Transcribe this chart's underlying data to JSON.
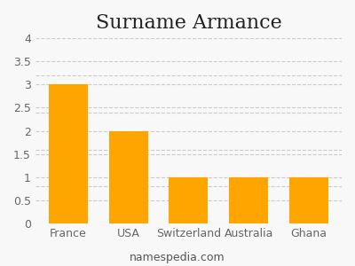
{
  "title": "Surname Armance",
  "categories": [
    "France",
    "USA",
    "Switzerland",
    "Australia",
    "Ghana"
  ],
  "values": [
    3,
    2,
    1,
    1,
    1
  ],
  "bar_color": "#FFA500",
  "ylim": [
    0,
    4
  ],
  "yticks_labeled": [
    0,
    0.5,
    1,
    1.5,
    2,
    2.5,
    3,
    3.5,
    4
  ],
  "yticks_extra_grid": [
    0.8,
    1.6,
    2.4,
    3.2
  ],
  "grid_color": "#cccccc",
  "background_color": "#f8f8f8",
  "title_fontsize": 16,
  "tick_fontsize": 9,
  "footer_text": "namespedia.com",
  "footer_fontsize": 9,
  "footer_color": "#555555"
}
